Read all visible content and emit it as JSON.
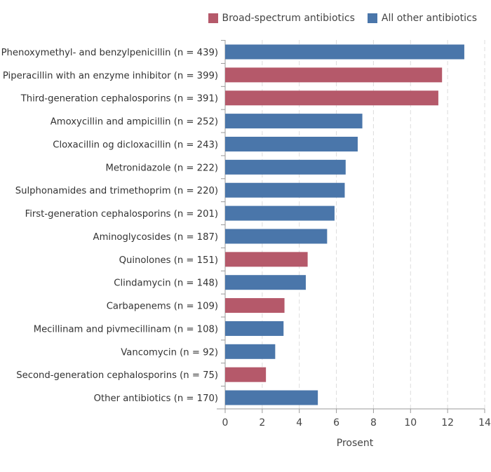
{
  "chart_data": {
    "type": "bar",
    "orientation": "horizontal",
    "title": "",
    "xlabel": "Prosent",
    "ylabel": "",
    "xlim": [
      0,
      14
    ],
    "xticks": [
      0,
      2,
      4,
      6,
      8,
      10,
      12,
      14
    ],
    "grid": "vertical dashed",
    "legend_position": "top-right",
    "legend": [
      {
        "name": "Broad-spectrum antibiotics",
        "color": "#b5596a"
      },
      {
        "name": "All other antibiotics",
        "color": "#4a76aa"
      }
    ],
    "categories": [
      "Phenoxymethyl- and benzylpenicillin (n = 439)",
      "Piperacillin with an enzyme inhibitor (n = 399)",
      "Third-generation  cephalosporins (n = 391)",
      "Amoxycillin and ampicillin (n = 252)",
      "Cloxacillin og dicloxacillin (n = 243)",
      "Metronidazole (n = 222)",
      "Sulphonamides and trimethoprim (n = 220)",
      "First-generation cephalosporins (n = 201)",
      "Aminoglycosides (n = 187)",
      "Quinolones (n = 151)",
      "Clindamycin (n = 148)",
      "Carbapenems (n = 109)",
      "Mecillinam and pivmecillinam (n = 108)",
      "Vancomycin (n = 92)",
      "Second-generation cephalosporins (n = 75)",
      "Other antibiotics (n = 170)"
    ],
    "values": [
      12.9,
      11.7,
      11.5,
      7.4,
      7.15,
      6.5,
      6.45,
      5.9,
      5.5,
      4.45,
      4.35,
      3.2,
      3.15,
      2.7,
      2.2,
      5.0
    ],
    "groups": [
      1,
      0,
      0,
      1,
      1,
      1,
      1,
      1,
      1,
      0,
      1,
      0,
      1,
      1,
      0,
      1
    ]
  }
}
